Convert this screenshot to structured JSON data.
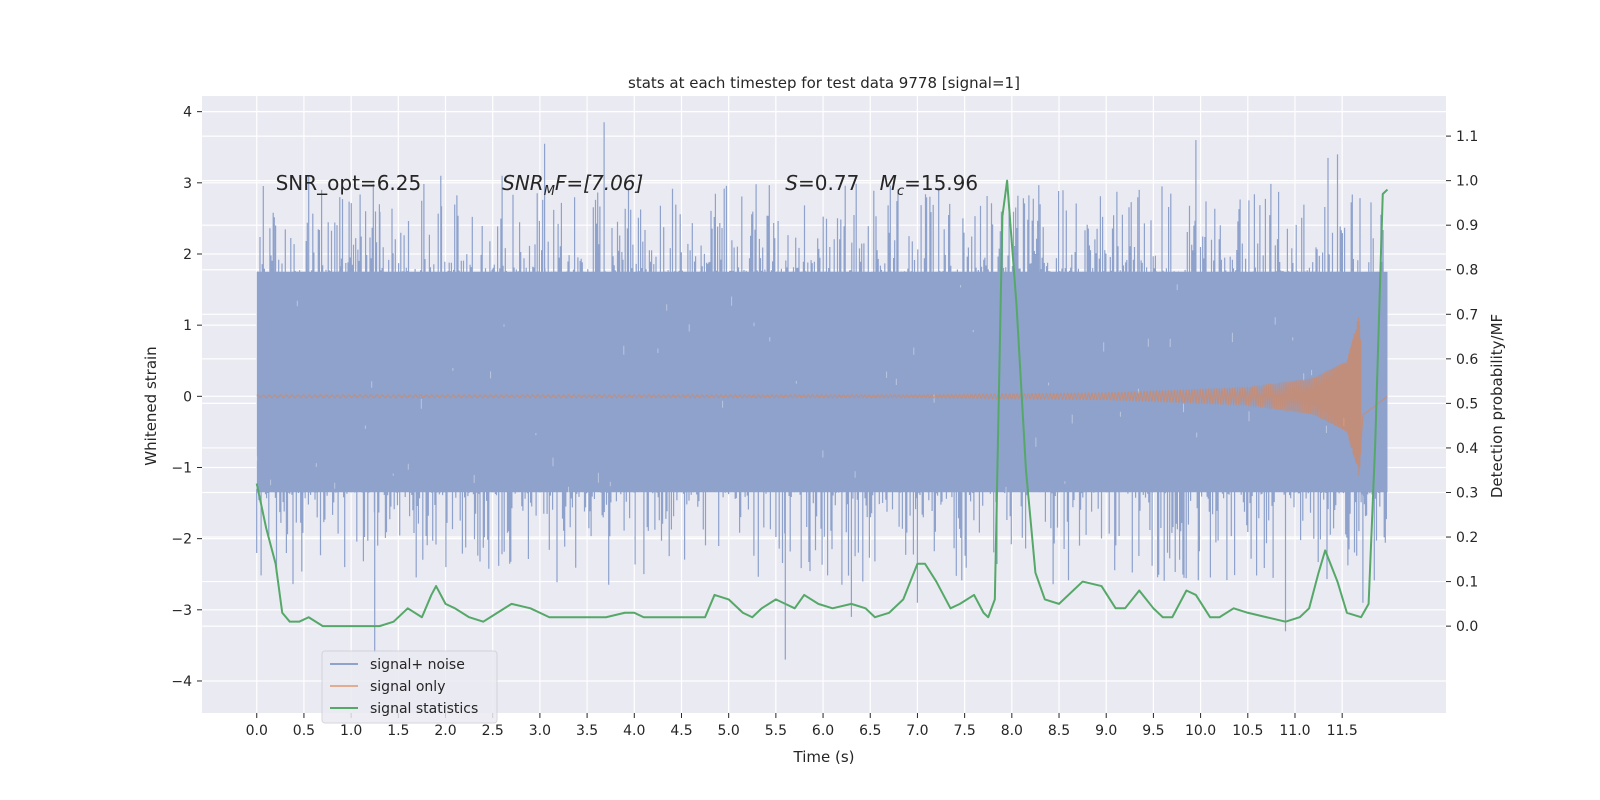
{
  "chart_data": {
    "type": "line",
    "title": "stats at each timestep for test data 9778 [signal=1]",
    "xlabel": "Time (s)",
    "ylabel_left": "Whitened strain",
    "ylabel_right": "Detection probability/MF",
    "xlim": [
      -0.58,
      12.6
    ],
    "ylim_left": [
      -4.45,
      4.22
    ],
    "ylim_right": [
      -0.195,
      1.19
    ],
    "x_ticks": [
      0.0,
      0.5,
      1.0,
      1.5,
      2.0,
      2.5,
      3.0,
      3.5,
      4.0,
      4.5,
      5.0,
      5.5,
      6.0,
      6.5,
      7.0,
      7.5,
      8.0,
      8.5,
      9.0,
      9.5,
      10.0,
      10.5,
      11.0,
      11.5
    ],
    "x_tick_labels": [
      "0.0",
      "0.5",
      "1.0",
      "1.5",
      "2.0",
      "2.5",
      "3.0",
      "3.5",
      "4.0",
      "4.5",
      "5.0",
      "5.5",
      "6.0",
      "6.5",
      "7.0",
      "7.5",
      "8.0",
      "8.5",
      "9.0",
      "9.5",
      "10.0",
      "10.5",
      "11.0",
      "11.5"
    ],
    "y_ticks_left": [
      -4,
      -3,
      -2,
      -1,
      0,
      1,
      2,
      3,
      4
    ],
    "y_tick_labels_left": [
      "−4",
      "−3",
      "−2",
      "−1",
      "0",
      "1",
      "2",
      "3",
      "4"
    ],
    "y_ticks_right": [
      0.0,
      0.1,
      0.2,
      0.3,
      0.4,
      0.5,
      0.6,
      0.7,
      0.8,
      0.9,
      1.0,
      1.1
    ],
    "y_tick_labels_right": [
      "0.0",
      "0.1",
      "0.2",
      "0.3",
      "0.4",
      "0.5",
      "0.6",
      "0.7",
      "0.8",
      "0.9",
      "1.0",
      "1.1"
    ],
    "grid": true,
    "legend_position": "bottom-left",
    "series": [
      {
        "name": "signal+ noise",
        "color": "#8ea2cc",
        "axis": "left",
        "x_range": [
          0.0,
          11.98
        ],
        "core_band": [
          -1.35,
          1.75
        ],
        "extremes": [
          [
            0.2,
            2.4
          ],
          [
            0.55,
            3.1
          ],
          [
            0.88,
            2.8
          ],
          [
            1.25,
            -3.6
          ],
          [
            1.3,
            2.7
          ],
          [
            1.95,
            3.1
          ],
          [
            2.6,
            3.1
          ],
          [
            3.05,
            3.55
          ],
          [
            3.68,
            3.85
          ],
          [
            5.6,
            -3.7
          ],
          [
            6.3,
            -3.1
          ],
          [
            7.0,
            -2.9
          ],
          [
            8.3,
            2.7
          ],
          [
            9.35,
            2.9
          ],
          [
            9.95,
            3.6
          ],
          [
            10.9,
            -3.3
          ],
          [
            11.35,
            3.35
          ],
          [
            11.45,
            3.4
          ],
          [
            11.72,
            -2.9
          ],
          [
            11.93,
            2.3
          ]
        ]
      },
      {
        "name": "signal only",
        "color": "#dd8452",
        "axis": "left",
        "x_range": [
          0.0,
          11.98
        ],
        "envelope": [
          [
            0.0,
            0.02
          ],
          [
            7.0,
            0.02
          ],
          [
            9.0,
            0.05
          ],
          [
            10.5,
            0.12
          ],
          [
            11.2,
            0.26
          ],
          [
            11.55,
            0.5
          ],
          [
            11.68,
            1.15
          ],
          [
            11.72,
            0.3
          ],
          [
            11.98,
            0.0
          ]
        ]
      },
      {
        "name": "signal statistics",
        "color": "#55a868",
        "axis": "right",
        "x": [
          0.0,
          0.1,
          0.2,
          0.27,
          0.35,
          0.45,
          0.55,
          0.7,
          1.0,
          1.3,
          1.45,
          1.6,
          1.75,
          1.85,
          1.9,
          2.0,
          2.1,
          2.25,
          2.4,
          2.55,
          2.7,
          2.9,
          3.1,
          3.4,
          3.7,
          3.9,
          4.0,
          4.1,
          4.25,
          4.5,
          4.75,
          4.85,
          5.0,
          5.15,
          5.25,
          5.35,
          5.5,
          5.6,
          5.7,
          5.8,
          5.95,
          6.1,
          6.3,
          6.45,
          6.55,
          6.7,
          6.85,
          7.0,
          7.08,
          7.2,
          7.35,
          7.45,
          7.6,
          7.7,
          7.75,
          7.82,
          7.9,
          7.95,
          8.05,
          8.15,
          8.25,
          8.35,
          8.5,
          8.75,
          8.95,
          9.1,
          9.2,
          9.35,
          9.5,
          9.6,
          9.7,
          9.85,
          9.95,
          10.1,
          10.2,
          10.35,
          10.5,
          10.7,
          10.9,
          11.05,
          11.15,
          11.25,
          11.32,
          11.45,
          11.55,
          11.7,
          11.78,
          11.85,
          11.93,
          11.98
        ],
        "values": [
          0.32,
          0.22,
          0.14,
          0.03,
          0.01,
          0.01,
          0.02,
          0.0,
          0.0,
          0.0,
          0.01,
          0.04,
          0.02,
          0.07,
          0.09,
          0.05,
          0.04,
          0.02,
          0.01,
          0.03,
          0.05,
          0.04,
          0.02,
          0.02,
          0.02,
          0.03,
          0.03,
          0.02,
          0.02,
          0.02,
          0.02,
          0.07,
          0.06,
          0.03,
          0.02,
          0.04,
          0.06,
          0.05,
          0.04,
          0.07,
          0.05,
          0.04,
          0.05,
          0.04,
          0.02,
          0.03,
          0.06,
          0.14,
          0.14,
          0.1,
          0.04,
          0.05,
          0.07,
          0.03,
          0.02,
          0.06,
          0.92,
          1.0,
          0.72,
          0.35,
          0.12,
          0.06,
          0.05,
          0.1,
          0.09,
          0.04,
          0.04,
          0.08,
          0.04,
          0.02,
          0.02,
          0.08,
          0.07,
          0.02,
          0.02,
          0.04,
          0.03,
          0.02,
          0.01,
          0.02,
          0.04,
          0.12,
          0.17,
          0.1,
          0.03,
          0.02,
          0.05,
          0.41,
          0.97,
          0.98
        ]
      }
    ],
    "annotations": [
      {
        "id": "snr-opt",
        "x": 0.2,
        "y": 3.0,
        "text": "SNR_opt=6.25"
      },
      {
        "id": "snr-mf",
        "x": 2.6,
        "y": 3.0,
        "prefix": "SNR",
        "sub": "M",
        "suffix": "F=[7.06]"
      },
      {
        "id": "s-value",
        "x": 5.6,
        "y": 3.0,
        "prefix": "S",
        "suffix": "=0.77"
      },
      {
        "id": "mc-value",
        "x": 6.6,
        "y": 3.0,
        "prefix": "M",
        "sub": "c",
        "suffix": "=15.96"
      }
    ]
  }
}
